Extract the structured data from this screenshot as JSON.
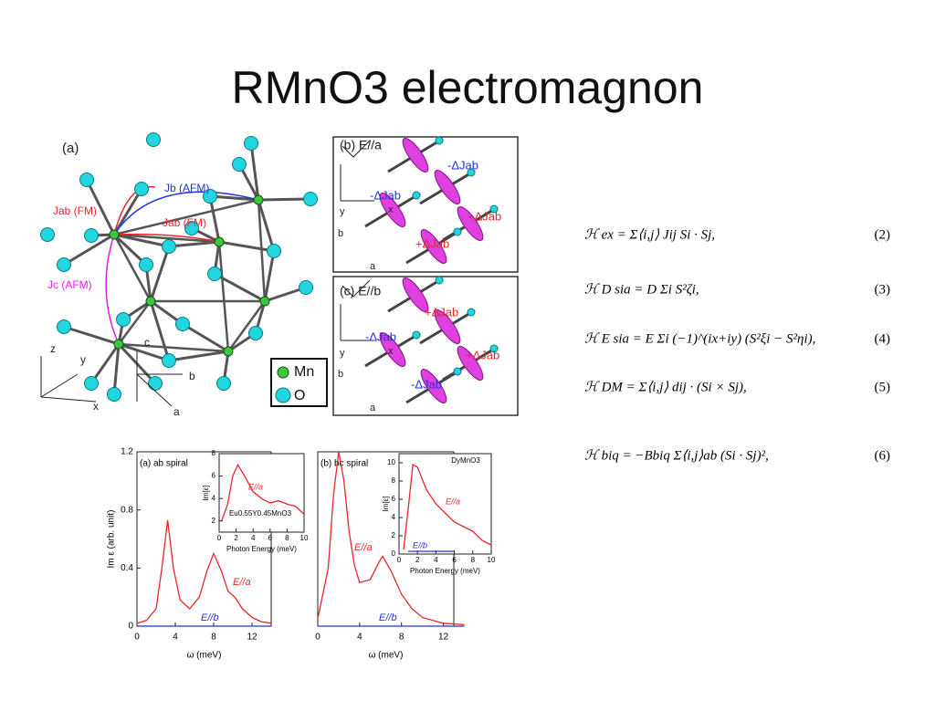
{
  "title": "RMnO3 electromagnon",
  "panel_a": {
    "labels": [
      "(a)",
      "Jab (FM)",
      "Jb (AFM)",
      "Jab (FM)",
      "Jc (AFM)",
      "z",
      "y",
      "x",
      "c",
      "b",
      "a",
      "Mn",
      "O"
    ]
  },
  "panel_b": {
    "labels": [
      "(b) E//a",
      "-ΔJab",
      "-ΔJab",
      "+ΔJab",
      "+ΔJab",
      "y",
      "x",
      "b",
      "a"
    ]
  },
  "panel_c": {
    "labels": [
      "(c) E//b",
      "+ΔJab",
      "-ΔJab",
      "+ΔJab",
      "-ΔJab",
      "y",
      "x",
      "b",
      "a"
    ]
  },
  "equations": [
    {
      "text": "ℋ ex = Σ⟨i,j⟩ Jij Si · Sj,",
      "number": "(2)"
    },
    {
      "text": "ℋ D sia = D Σi S²ζi,",
      "number": "(3)"
    },
    {
      "text": "ℋ E sia = E Σi (−1)^(ix+iy) (S²ξi − S²ηi),",
      "number": "(4)"
    },
    {
      "text": "ℋ DM = Σ⟨i,j⟩ dij · (Si × Sj),",
      "number": "(5)"
    },
    {
      "text": "ℋ biq = −Bbiq Σ⟨i,j⟩ab (Si · Sj)²,",
      "number": "(6)"
    }
  ],
  "chart_data": [
    {
      "type": "line",
      "title": "(a) ab spiral",
      "x_label": "ω (meV)",
      "y_label": "Im ε (arb. unit)",
      "x": [
        0,
        1,
        2,
        2.6,
        3.2,
        3.8,
        4.5,
        5.5,
        6.5,
        7.3,
        8,
        8.8,
        9.5,
        10.2,
        11,
        12,
        13,
        14
      ],
      "series": [
        {
          "name": "E//a",
          "color": "#e8262a",
          "values": [
            0.02,
            0.04,
            0.12,
            0.4,
            0.73,
            0.4,
            0.18,
            0.12,
            0.2,
            0.38,
            0.5,
            0.38,
            0.24,
            0.2,
            0.12,
            0.06,
            0.03,
            0.02
          ]
        },
        {
          "name": "E//b",
          "color": "#2233dd",
          "values": [
            0,
            0,
            0,
            0,
            0,
            0,
            0,
            0,
            0,
            0,
            0,
            0,
            0,
            0,
            0,
            0,
            0,
            0
          ]
        }
      ],
      "xlim": [
        0,
        14
      ],
      "xticks": [
        0,
        4,
        8,
        12
      ],
      "ylim": [
        0,
        1.2
      ],
      "yticks": [
        0,
        0.4,
        0.8,
        1.2
      ]
    },
    {
      "type": "line",
      "x_label": "Photon Energy (meV)",
      "y_label": "Im[ε]",
      "annotation": "Eu0.55Y0.45MnO3",
      "x": [
        0.3,
        1,
        1.6,
        2.2,
        3,
        4,
        5,
        6,
        7,
        8,
        9,
        10
      ],
      "series": [
        {
          "name": "E//a",
          "color": "#e8262a",
          "values": [
            2,
            3.5,
            6,
            7,
            6,
            4.6,
            4,
            3.6,
            3.8,
            3.5,
            3.3,
            2.6
          ]
        }
      ],
      "xlim": [
        0,
        10
      ],
      "xticks": [
        0,
        2,
        4,
        6,
        8,
        10
      ],
      "ylim": [
        1,
        8
      ],
      "yticks": [
        2,
        4,
        6,
        8
      ]
    },
    {
      "type": "line",
      "title": "(b) bc spiral",
      "x_label": "ω (meV)",
      "x": [
        0,
        1,
        1.5,
        2,
        2.5,
        3,
        3.5,
        4,
        5,
        6,
        6.2,
        7,
        8,
        9,
        10,
        12,
        14
      ],
      "series": [
        {
          "name": "E//a",
          "color": "#e8262a",
          "values": [
            0.05,
            0.4,
            0.9,
            1.2,
            1.0,
            0.65,
            0.42,
            0.3,
            0.32,
            0.46,
            0.48,
            0.38,
            0.22,
            0.12,
            0.06,
            0.02,
            0.01
          ]
        },
        {
          "name": "E//b",
          "color": "#2233dd",
          "values": [
            0,
            0,
            0,
            0,
            0,
            0,
            0,
            0,
            0,
            0,
            0,
            0,
            0,
            0,
            0,
            0,
            0
          ]
        }
      ],
      "xlim": [
        0,
        13
      ],
      "xticks": [
        0,
        4,
        8,
        12
      ],
      "ylim": [
        0,
        1.2
      ]
    },
    {
      "type": "line",
      "x_label": "Photon Energy (meV)",
      "y_label": "Im[ε]",
      "annotation": "DyMnO3",
      "x": [
        0.5,
        1,
        1.5,
        2,
        3,
        4,
        5,
        6,
        7,
        8,
        9,
        10
      ],
      "series": [
        {
          "name": "E//a",
          "color": "#e8262a",
          "values": [
            0.5,
            5,
            9.8,
            9.5,
            7,
            5.5,
            4.5,
            3.5,
            3,
            2.5,
            1.5,
            1
          ]
        },
        {
          "name": "E//b",
          "color": "#2233dd",
          "values": [
            null,
            0.3,
            0.3,
            0.3,
            0.3,
            0.3,
            0.3,
            0.3,
            null,
            null,
            null,
            null
          ]
        }
      ],
      "xlim": [
        0,
        10
      ],
      "xticks": [
        0,
        2,
        4,
        6,
        8,
        10
      ],
      "ylim": [
        0,
        11
      ],
      "yticks": [
        0,
        2,
        4,
        6,
        8,
        10
      ]
    }
  ]
}
